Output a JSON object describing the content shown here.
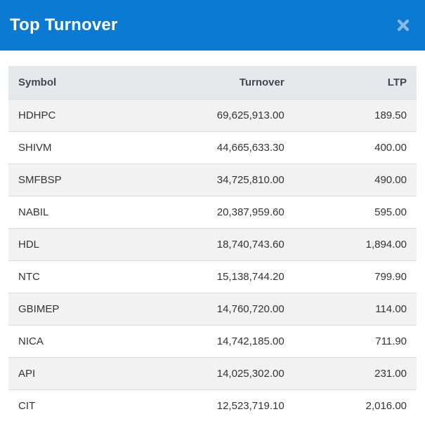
{
  "modal": {
    "title": "Top Turnover",
    "close_icon": "close-x",
    "colors": {
      "header_bg": "#0b7ad3",
      "header_text": "#ffffff",
      "close_icon": "#8ab9e6",
      "table_header_bg": "#e6e9ec",
      "row_stripe": "#f2f2f2",
      "row_border": "#dcdcdc",
      "body_text": "#333333"
    }
  },
  "table": {
    "columns": [
      {
        "key": "symbol",
        "label": "Symbol",
        "align": "left"
      },
      {
        "key": "turnover",
        "label": "Turnover",
        "align": "right"
      },
      {
        "key": "ltp",
        "label": "LTP",
        "align": "right"
      }
    ],
    "rows": [
      {
        "symbol": "HDHPC",
        "turnover": "69,625,913.00",
        "ltp": "189.50"
      },
      {
        "symbol": "SHIVM",
        "turnover": "44,665,633.30",
        "ltp": "400.00"
      },
      {
        "symbol": "SMFBSP",
        "turnover": "34,725,810.00",
        "ltp": "490.00"
      },
      {
        "symbol": "NABIL",
        "turnover": "20,387,959.60",
        "ltp": "595.00"
      },
      {
        "symbol": "HDL",
        "turnover": "18,740,743.60",
        "ltp": "1,894.00"
      },
      {
        "symbol": "NTC",
        "turnover": "15,138,744.20",
        "ltp": "799.90"
      },
      {
        "symbol": "GBIMEP",
        "turnover": "14,760,720.00",
        "ltp": "114.00"
      },
      {
        "symbol": "NICA",
        "turnover": "14,742,185.00",
        "ltp": "711.90"
      },
      {
        "symbol": "API",
        "turnover": "14,025,302.00",
        "ltp": "231.00"
      },
      {
        "symbol": "CIT",
        "turnover": "12,523,719.10",
        "ltp": "2,016.00"
      }
    ]
  }
}
